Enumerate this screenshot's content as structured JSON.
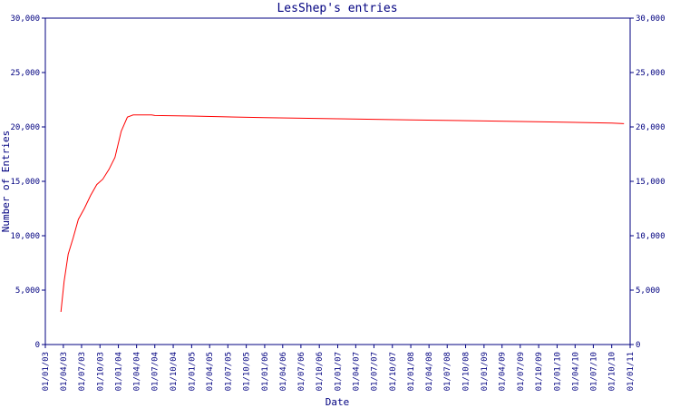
{
  "chart_data": {
    "type": "line",
    "title": "LesShep's entries",
    "xlabel": "Date",
    "ylabel": "Number of Entries",
    "ylim": [
      0,
      30000
    ],
    "y_ticks": [
      0,
      5000,
      10000,
      15000,
      20000,
      25000,
      30000
    ],
    "y_tick_labels": [
      "0",
      "5,000",
      "10,000",
      "15,000",
      "20,000",
      "25,000",
      "30,000"
    ],
    "x_tick_labels": [
      "01/01/03",
      "01/04/03",
      "01/07/03",
      "01/10/03",
      "01/01/04",
      "01/04/04",
      "01/07/04",
      "01/10/04",
      "01/01/05",
      "01/04/05",
      "01/07/05",
      "01/10/05",
      "01/01/06",
      "01/04/06",
      "01/07/06",
      "01/10/06",
      "01/01/07",
      "01/04/07",
      "01/07/07",
      "01/10/07",
      "01/01/08",
      "01/04/08",
      "01/07/08",
      "01/10/08",
      "01/01/09",
      "01/04/09",
      "01/07/09",
      "01/10/09",
      "01/01/10",
      "01/04/10",
      "01/07/10",
      "01/10/10",
      "01/01/11"
    ],
    "grid": false,
    "line_color": "#ff0000",
    "axis_color": "#000080",
    "series": [
      {
        "x": [
          "2003-03-20",
          "2003-04-05",
          "2003-04-25",
          "2003-05-20",
          "2003-06-15",
          "2003-07-15",
          "2003-08-15",
          "2003-09-15",
          "2003-10-15",
          "2003-11-15",
          "2003-12-15",
          "2004-01-15",
          "2004-02-15",
          "2004-03-15",
          "2004-04-15",
          "2004-05-15",
          "2004-06-15",
          "2004-07-01",
          "2005-01-01",
          "2006-01-01",
          "2007-01-01",
          "2008-01-01",
          "2009-01-01",
          "2010-01-01",
          "2010-10-01",
          "2010-12-01"
        ],
        "y": [
          3000,
          5800,
          8300,
          9800,
          11500,
          12500,
          13700,
          14700,
          15200,
          16100,
          17200,
          19600,
          20900,
          21100,
          21100,
          21100,
          21100,
          21050,
          21000,
          20850,
          20750,
          20650,
          20550,
          20450,
          20350,
          20300
        ]
      }
    ]
  }
}
